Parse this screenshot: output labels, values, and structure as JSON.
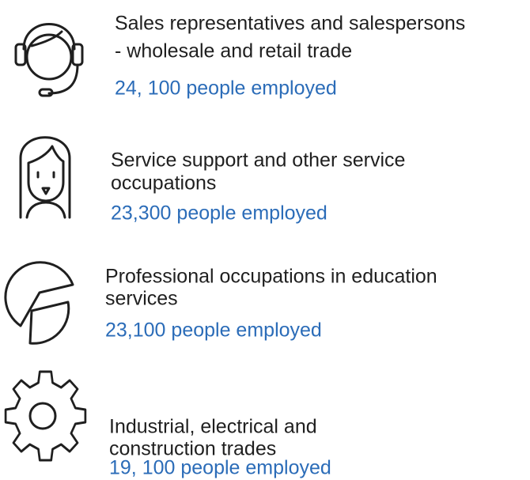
{
  "items": [
    {
      "title_lines": [
        "Sales representatives and salespersons",
        "- wholesale and retail trade"
      ],
      "employed": "24, 100 people employed"
    },
    {
      "title_lines": [
        "Service support and other service",
        "occupations"
      ],
      "employed": "23,300 people employed"
    },
    {
      "title_lines": [
        "Professional occupations in education",
        "services"
      ],
      "employed": "23,100 people employed"
    },
    {
      "title_lines": [
        "Industrial, electrical and",
        "construction trades"
      ],
      "employed": "19, 100 people employed"
    }
  ]
}
